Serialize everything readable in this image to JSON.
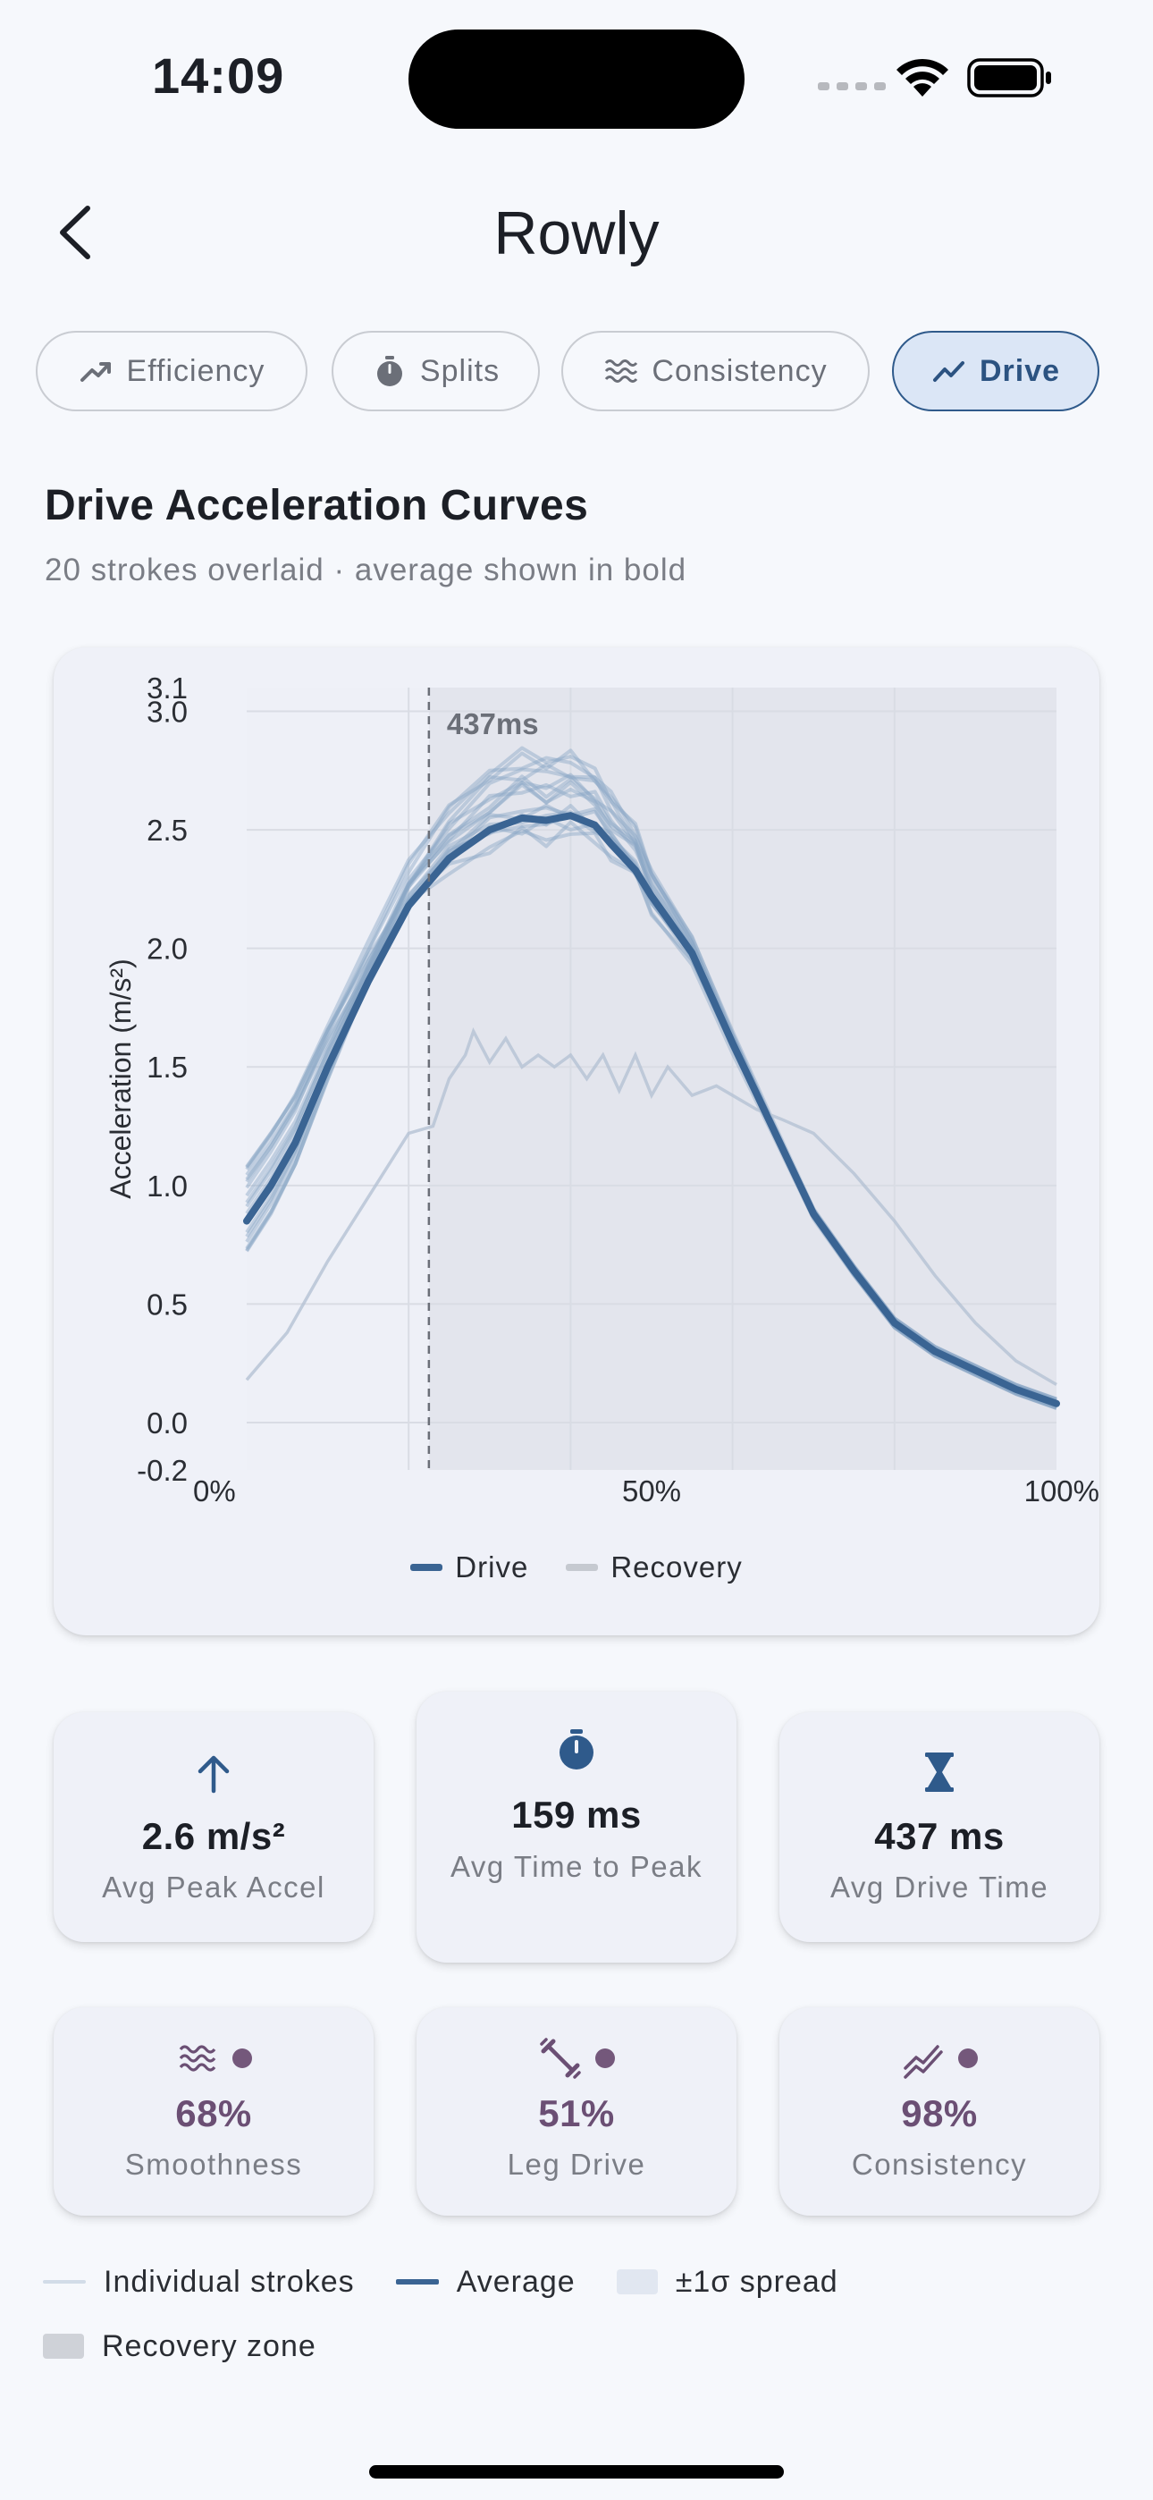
{
  "status_bar": {
    "time": "14:09"
  },
  "nav": {
    "title": "Rowly",
    "back_icon": "chevron-left-icon"
  },
  "tabs": [
    {
      "label": "Efficiency",
      "icon": "trending-up-icon",
      "active": false
    },
    {
      "label": "Splits",
      "icon": "stopwatch-icon",
      "active": false
    },
    {
      "label": "Consistency",
      "icon": "waves-icon",
      "active": false
    },
    {
      "label": "Drive",
      "icon": "trending-line-icon",
      "active": true
    }
  ],
  "section": {
    "title": "Drive Acceleration Curves",
    "subtitle": "20 strokes overlaid · average shown in bold"
  },
  "chart_data": {
    "type": "line",
    "ylabel": "Acceleration (m/s²)",
    "xlabel": "",
    "ylim": [
      -0.2,
      3.1
    ],
    "y_ticks": [
      "3.1",
      "3.0",
      "2.5",
      "2.0",
      "1.5",
      "1.0",
      "0.5",
      "0.0",
      "-0.2"
    ],
    "x_ticks": [
      "0%",
      "50%",
      "100%"
    ],
    "xlim": [
      0,
      100
    ],
    "grid": true,
    "drive_marker": {
      "x": 22.5,
      "label": "437ms"
    },
    "recovery_zone": [
      22.5,
      100
    ],
    "legend": [
      {
        "name": "Drive",
        "color": "#3a6493"
      },
      {
        "name": "Recovery",
        "color": "#c5c9d0"
      }
    ],
    "average": {
      "name": "Average",
      "x": [
        0,
        3,
        6,
        10,
        15,
        20,
        25,
        30,
        34,
        37,
        40,
        43,
        45,
        48,
        50,
        55,
        60,
        65,
        70,
        75,
        80,
        85,
        90,
        95,
        100
      ],
      "y": [
        0.85,
        1.0,
        1.18,
        1.5,
        1.86,
        2.18,
        2.38,
        2.5,
        2.55,
        2.54,
        2.56,
        2.52,
        2.44,
        2.33,
        2.22,
        1.98,
        1.6,
        1.24,
        0.88,
        0.64,
        0.42,
        0.3,
        0.22,
        0.14,
        0.08
      ]
    },
    "outlier_stroke": {
      "x": [
        0,
        5,
        10,
        15,
        20,
        23,
        25,
        27,
        28,
        30,
        32,
        34,
        36,
        38,
        40,
        42,
        44,
        46,
        48,
        50,
        52,
        55,
        58,
        60,
        63,
        66,
        70,
        75,
        80,
        85,
        90,
        95,
        100
      ],
      "y": [
        0.18,
        0.38,
        0.68,
        0.95,
        1.22,
        1.25,
        1.45,
        1.55,
        1.65,
        1.52,
        1.62,
        1.5,
        1.55,
        1.5,
        1.55,
        1.45,
        1.55,
        1.4,
        1.55,
        1.38,
        1.5,
        1.38,
        1.42,
        1.38,
        1.32,
        1.28,
        1.22,
        1.05,
        0.85,
        0.62,
        0.42,
        0.26,
        0.16
      ]
    },
    "individual_strokes_count": 20
  },
  "stats_row1": [
    {
      "icon": "arrow-up-icon",
      "value": "2.6 m/s²",
      "label": "Avg Peak Accel"
    },
    {
      "icon": "stopwatch-icon",
      "value": "159 ms",
      "label": "Avg Time to Peak"
    },
    {
      "icon": "hourglass-icon",
      "value": "437 ms",
      "label": "Avg Drive Time"
    }
  ],
  "stats_row2": [
    {
      "icon": "waves-icon",
      "value": "68%",
      "label": "Smoothness"
    },
    {
      "icon": "dumbbell-icon",
      "value": "51%",
      "label": "Leg Drive"
    },
    {
      "icon": "trend-icon",
      "value": "98%",
      "label": "Consistency"
    }
  ],
  "bottom_legend": {
    "individual": "Individual strokes",
    "average": "Average",
    "spread": "±1σ spread",
    "recovery": "Recovery zone"
  },
  "colors": {
    "accent": "#2f5a8b",
    "average_line": "#3a6493",
    "individual_line": "#9fb6cf",
    "purple": "#6b4f74",
    "recovery_zone": "#e3e5ed"
  }
}
